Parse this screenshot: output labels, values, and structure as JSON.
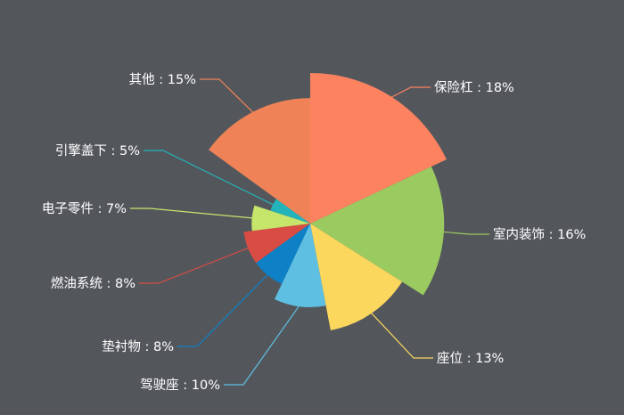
{
  "chart_data": {
    "type": "pie",
    "variant": "rose-radius",
    "label_format": "{name} : {value}%",
    "legend": "none",
    "slices": [
      {
        "name": "保险杠",
        "value": 18,
        "color": "#fd8360"
      },
      {
        "name": "室内装饰",
        "value": 16,
        "color": "#9bca60"
      },
      {
        "name": "座位",
        "value": 13,
        "color": "#fbd75e"
      },
      {
        "name": "驾驶座",
        "value": 10,
        "color": "#5fbfe2"
      },
      {
        "name": "垫衬物",
        "value": 8,
        "color": "#0d80c6"
      },
      {
        "name": "燃油系统",
        "value": 8,
        "color": "#d94c43"
      },
      {
        "name": "电子零件",
        "value": 7,
        "color": "#c6e56b"
      },
      {
        "name": "引擎盖下",
        "value": 5,
        "color": "#22b4ba"
      },
      {
        "name": "其他",
        "value": 15,
        "color": "#ef8357"
      }
    ]
  }
}
